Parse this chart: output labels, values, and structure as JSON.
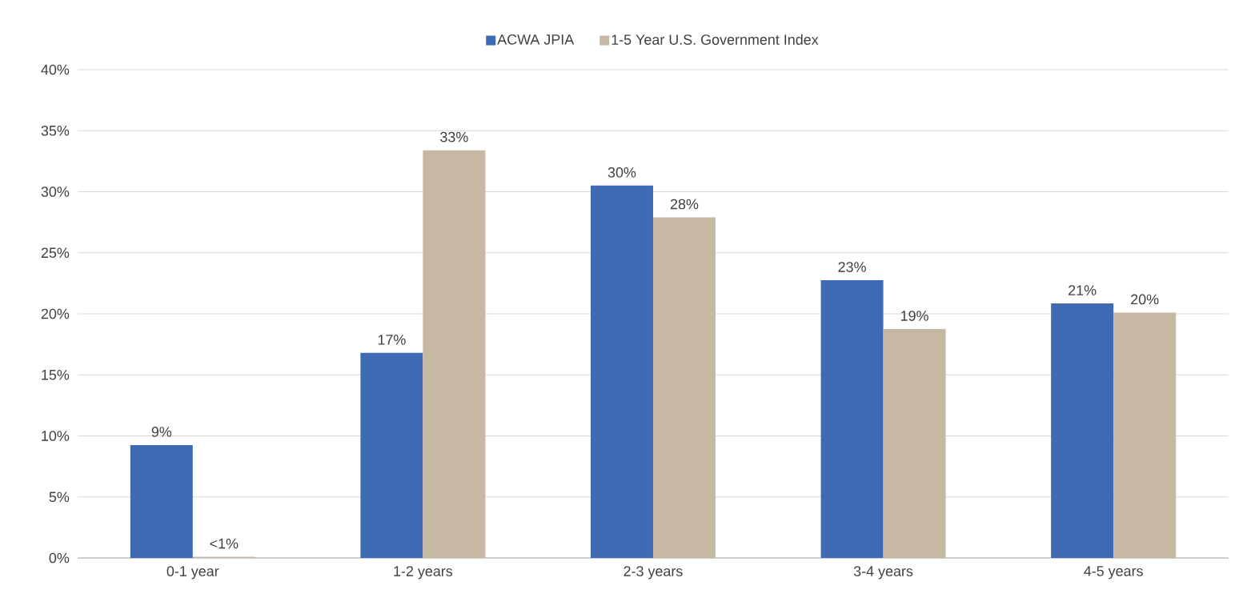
{
  "chart_data": {
    "type": "bar",
    "categories": [
      "0-1 year",
      "1-2 years",
      "2-3 years",
      "3-4 years",
      "4-5 years"
    ],
    "series": [
      {
        "name": "ACWA JPIA",
        "color": "#3f6bb5",
        "values": [
          9.25,
          16.8,
          30.5,
          22.75,
          20.85
        ],
        "value_labels": [
          "9%",
          "17%",
          "30%",
          "23%",
          "21%"
        ]
      },
      {
        "name": "1-5 Year U.S. Government Index",
        "color": "#c7b8a4",
        "values": [
          0.1,
          33.4,
          27.9,
          18.75,
          20.1
        ],
        "value_labels": [
          "<1%",
          "33%",
          "28%",
          "19%",
          "20%"
        ]
      }
    ],
    "ylim": [
      0,
      40
    ],
    "yticks": [
      {
        "value": 0,
        "label": "0%"
      },
      {
        "value": 5,
        "label": "5%"
      },
      {
        "value": 10,
        "label": "10%"
      },
      {
        "value": 15,
        "label": "15%"
      },
      {
        "value": 20,
        "label": "20%"
      },
      {
        "value": 25,
        "label": "25%"
      },
      {
        "value": 30,
        "label": "30%"
      },
      {
        "value": 35,
        "label": "35%"
      },
      {
        "value": 40,
        "label": "40%"
      }
    ],
    "grid": "y",
    "legend": "top"
  }
}
